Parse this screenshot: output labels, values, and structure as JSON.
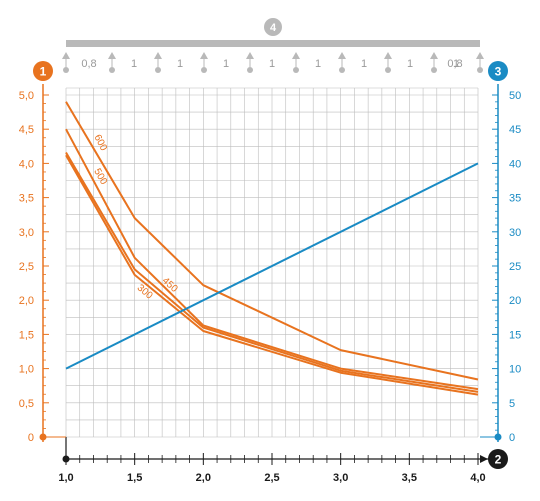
{
  "colors": {
    "left_axis": "#e8731f",
    "right_axis": "#1a8bc4",
    "bottom_axis": "#1a1a1a",
    "beam": "#b9b9b9",
    "grid": "#bdbdbd"
  },
  "badges": {
    "left": "1",
    "bottom": "2",
    "right": "3",
    "top": "4"
  },
  "support_spacings": [
    "0,8",
    "1",
    "1",
    "1",
    "1",
    "1",
    "1",
    "1",
    "1",
    "0,8"
  ],
  "chart_data": {
    "type": "line",
    "x": {
      "ticks": [
        "1,0",
        "1,5",
        "2,0",
        "2,5",
        "3,0",
        "3,5",
        "4,0"
      ],
      "range": [
        1.0,
        4.0
      ]
    },
    "y_left": {
      "ticks": [
        "0",
        "0,5",
        "1,0",
        "1,5",
        "2,0",
        "2,5",
        "3,0",
        "3,5",
        "4,0",
        "4,5",
        "5,0"
      ],
      "range": [
        0,
        5.0
      ]
    },
    "y_right": {
      "ticks": [
        "0",
        "5",
        "10",
        "15",
        "20",
        "25",
        "30",
        "35",
        "40",
        "45",
        "50"
      ],
      "range": [
        0,
        50
      ]
    },
    "grid": true,
    "series": [
      {
        "name": "600",
        "axis": "left",
        "color": "#e8731f",
        "points": [
          [
            1.0,
            4.9
          ],
          [
            1.5,
            3.2
          ],
          [
            2.0,
            2.22
          ],
          [
            3.0,
            1.27
          ],
          [
            4.0,
            0.84
          ]
        ]
      },
      {
        "name": "500",
        "axis": "left",
        "color": "#e8731f",
        "points": [
          [
            1.0,
            4.5
          ],
          [
            1.5,
            2.62
          ],
          [
            2.0,
            1.63
          ],
          [
            3.0,
            1.0
          ],
          [
            4.0,
            0.7
          ]
        ]
      },
      {
        "name": "450",
        "axis": "left",
        "color": "#e8731f",
        "points": [
          [
            1.0,
            4.16
          ],
          [
            1.5,
            2.45
          ],
          [
            2.0,
            1.6
          ],
          [
            3.0,
            0.97
          ],
          [
            4.0,
            0.66
          ]
        ]
      },
      {
        "name": "300",
        "axis": "left",
        "color": "#e8731f",
        "points": [
          [
            1.0,
            4.12
          ],
          [
            1.5,
            2.37
          ],
          [
            2.0,
            1.55
          ],
          [
            3.0,
            0.94
          ],
          [
            4.0,
            0.62
          ]
        ]
      },
      {
        "name": "",
        "axis": "right",
        "color": "#1a8bc4",
        "points": [
          [
            1.0,
            10
          ],
          [
            4.0,
            40
          ]
        ]
      }
    ]
  }
}
